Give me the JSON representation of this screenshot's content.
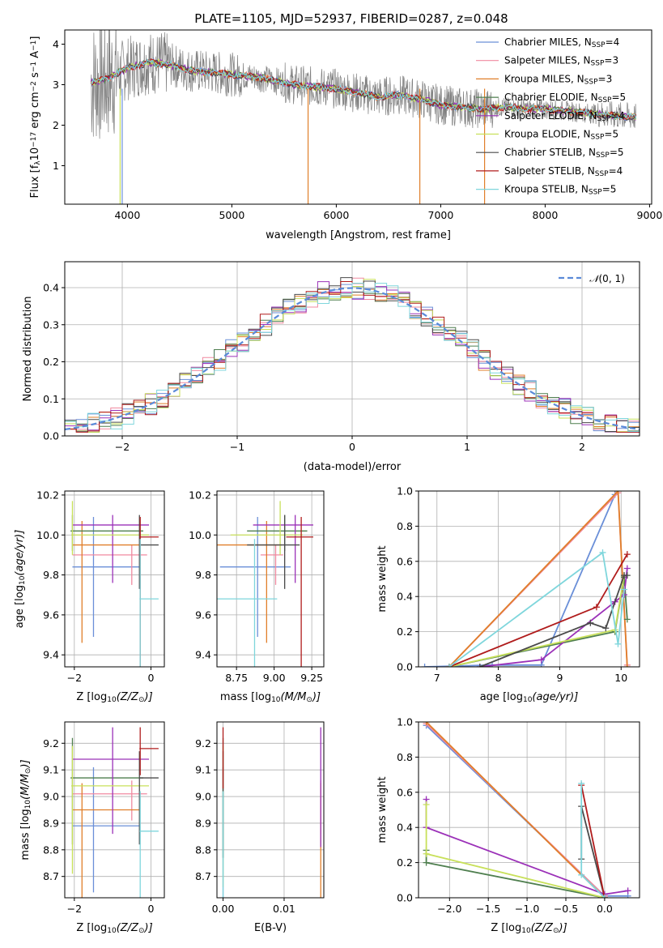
{
  "figure": {
    "title": "PLATE=1105, MJD=52937, FIBERID=0287, z=0.048"
  },
  "series": [
    {
      "name": "Chabrier MILES, N$_{SSP}$=4",
      "legend": [
        "Chabrier MILES, N",
        "SSP",
        "=4"
      ],
      "color": "#6a8fd8",
      "age": 9.84,
      "age_err": 0.25,
      "age_err_up": 0.25,
      "Z": -1.5,
      "Z_lo": -2.05,
      "Z_hi": -0.28,
      "mass": 8.89,
      "mass_err_lo": 0.2,
      "mass_err_hi": 0.22,
      "ebv": 0.0
    },
    {
      "name": "Salpeter MILES, N$_{SSP}$=3",
      "legend": [
        "Salpeter MILES, N",
        "SSP",
        "=3"
      ],
      "color": "#f08aa0",
      "age": 9.9,
      "age_err": 0.05,
      "age_err_up": 0.05,
      "Z": -0.5,
      "Z_lo": -2.05,
      "Z_hi": -0.1,
      "mass": 9.01,
      "mass_err_lo": 0.05,
      "mass_err_hi": 0.05,
      "ebv": 0.016
    },
    {
      "name": "Kroupa MILES, N$_{SSP}$=3",
      "legend": [
        "Kroupa MILES, N",
        "SSP",
        "=3"
      ],
      "color": "#e07f2a",
      "age": 9.95,
      "age_err": 0.39,
      "age_err_up": 0.12,
      "Z": -1.8,
      "Z_lo": -2.05,
      "Z_hi": -0.3,
      "mass": 8.95,
      "mass_err_lo": 0.3,
      "mass_err_hi": 0.1,
      "ebv": 0.016
    },
    {
      "name": "Chabrier ELODIE, N$_{SSP}$=5",
      "legend": [
        "Chabrier ELODIE, N",
        "SSP",
        "=5"
      ],
      "color": "#4f7f4f",
      "age": 10.02,
      "age_err": 0.0,
      "age_err_up": 0.08,
      "Z": -2.05,
      "Z_lo": -2.1,
      "Z_hi": -0.2,
      "mass": 9.07,
      "mass_err_lo": 0.2,
      "mass_err_hi": 0.15,
      "ebv": 0.0
    },
    {
      "name": "Salpeter ELODIE, N$_{SSP}$=4",
      "legend": [
        "Salpeter ELODIE, N",
        "SSP",
        "=4"
      ],
      "color": "#9b30b8",
      "age": 10.05,
      "age_err": 0.19,
      "age_err_up": 0.05,
      "Z": -1.0,
      "Z_lo": -2.05,
      "Z_hi": -0.05,
      "mass": 9.14,
      "mass_err_lo": 0.23,
      "mass_err_hi": 0.12,
      "ebv": 0.016
    },
    {
      "name": "Kroupa ELODIE, N$_{SSP}$=5",
      "legend": [
        "Kroupa ELODIE, N",
        "SSP",
        "=5"
      ],
      "color": "#c8e05a",
      "age": 10.0,
      "age_err": 0.0,
      "age_err_up": 0.17,
      "Z": -2.05,
      "Z_lo": -2.08,
      "Z_hi": -0.05,
      "mass": 9.04,
      "mass_err_lo": 0.28,
      "mass_err_hi": 0.15,
      "ebv": 0.0
    },
    {
      "name": "Chabrier STELIB, N$_{SSP}$=5",
      "legend": [
        "Chabrier STELIB, N",
        "SSP",
        "=5"
      ],
      "color": "#4a4a4a",
      "age": 9.95,
      "age_err": 0.12,
      "age_err_up": 0.15,
      "Z": -0.3,
      "Z_lo": -0.3,
      "Z_hi": 0.2,
      "mass": 9.07,
      "mass_err_lo": 0.2,
      "mass_err_hi": 0.1,
      "ebv": 0.0
    },
    {
      "name": "Salpeter STELIB, N$_{SSP}$=4",
      "legend": [
        "Salpeter STELIB, N",
        "SSP",
        "=4"
      ],
      "color": "#b01c1c",
      "age": 9.99,
      "age_err": 0.55,
      "age_err_up": 0.1,
      "Z": -0.28,
      "Z_lo": -0.3,
      "Z_hi": 0.2,
      "mass": 9.18,
      "mass_err_lo": 0.05,
      "mass_err_hi": 0.08,
      "ebv": 0.0
    },
    {
      "name": "Kroupa STELIB, N$_{SSP}$=5",
      "legend": [
        "Kroupa STELIB, N",
        "SSP",
        "=5"
      ],
      "color": "#7fd6dc",
      "age": 9.68,
      "age_err": 0.3,
      "age_err_up": 0.3,
      "Z": -0.28,
      "Z_lo": -0.3,
      "Z_hi": 0.2,
      "mass": 8.87,
      "mass_err_lo": 0.2,
      "mass_err_hi": 0.15,
      "ebv": 0.0
    }
  ],
  "chart_data": [
    {
      "type": "line",
      "panel": "spectrum",
      "title": "PLATE=1105, MJD=52937, FIBERID=0287, z=0.048",
      "xlabel": "wavelength [Angstrom, rest frame]",
      "ylabel_parts": [
        "Flux [f",
        "λ",
        "10",
        "−17",
        " erg cm",
        "−2",
        " s",
        "−1",
        " A",
        "−1",
        "]"
      ],
      "xlim": [
        3400,
        9020
      ],
      "ylim": [
        0.05,
        4.35
      ],
      "xticks": [
        4000,
        5000,
        6000,
        7000,
        8000,
        9000
      ],
      "yticks": [
        1,
        2,
        3,
        4
      ],
      "data_color": "#808080",
      "data_x_range": [
        3650,
        8870
      ],
      "continuum_points": [
        [
          3650,
          3.05
        ],
        [
          3800,
          3.15
        ],
        [
          4000,
          3.4
        ],
        [
          4200,
          3.55
        ],
        [
          4400,
          3.5
        ],
        [
          4600,
          3.35
        ],
        [
          4800,
          3.3
        ],
        [
          5000,
          3.25
        ],
        [
          5200,
          3.2
        ],
        [
          5400,
          3.1
        ],
        [
          5600,
          3.0
        ],
        [
          5800,
          2.95
        ],
        [
          6000,
          2.9
        ],
        [
          6200,
          2.8
        ],
        [
          6400,
          2.7
        ],
        [
          6600,
          2.75
        ],
        [
          6800,
          2.65
        ],
        [
          7000,
          2.5
        ],
        [
          7200,
          2.45
        ],
        [
          7400,
          2.4
        ],
        [
          7600,
          2.45
        ],
        [
          7800,
          2.4
        ],
        [
          8000,
          2.4
        ],
        [
          8200,
          2.35
        ],
        [
          8400,
          2.3
        ],
        [
          8600,
          2.25
        ],
        [
          8870,
          2.2
        ]
      ],
      "model_x_range": [
        3650,
        8870
      ],
      "model_cut_x": 7420
    },
    {
      "type": "line",
      "panel": "residual_distribution",
      "xlabel": "(data-model)/error",
      "ylabel": "Normed distribution",
      "xlim": [
        -2.5,
        2.5
      ],
      "ylim": [
        0.0,
        0.47
      ],
      "xticks": [
        -2,
        -1,
        0,
        1,
        2
      ],
      "yticks": [
        0.0,
        0.1,
        0.2,
        0.3,
        0.4
      ],
      "reference_curve": {
        "label": "$\\mathcal{N}(0,1)$",
        "label_parts": [
          "𝒩",
          "(0, 1)"
        ],
        "color": "#5a8ad8",
        "mu": 0,
        "sigma": 1
      },
      "bins": 50
    },
    {
      "type": "scatter",
      "panel": "age_vs_Z",
      "xlabel_parts": [
        "Z [log",
        "10",
        "(Z/Z",
        "⊙",
        ")]"
      ],
      "ylabel_parts": [
        "age  [log",
        "10",
        "(age/yr)]"
      ],
      "xlim": [
        -2.25,
        0.35
      ],
      "ylim": [
        9.34,
        10.22
      ],
      "xticks": [
        -2,
        0
      ],
      "yticks": [
        9.4,
        9.6,
        9.8,
        10.0,
        10.2
      ]
    },
    {
      "type": "scatter",
      "panel": "age_vs_mass",
      "xlabel_parts": [
        "mass [log",
        "10",
        "(M/M",
        "⊙",
        ")]"
      ],
      "xlim": [
        8.62,
        9.33
      ],
      "ylim": [
        9.34,
        10.22
      ],
      "xticks": [
        8.75,
        9.0,
        9.25
      ],
      "xticklabels": [
        "8.75",
        "9.00",
        "9.25"
      ],
      "yticks": [
        9.4,
        9.6,
        9.8,
        10.0,
        10.2
      ]
    },
    {
      "type": "line",
      "panel": "mass_weight_vs_age",
      "xlabel_parts": [
        "age  [log",
        "10",
        "(age/yr)]"
      ],
      "ylabel": "mass weight",
      "xlim": [
        6.7,
        10.3
      ],
      "ylim": [
        0.0,
        1.0
      ],
      "xticks": [
        7,
        8,
        9,
        10
      ],
      "yticks": [
        0.0,
        0.2,
        0.4,
        0.6,
        0.8,
        1.0
      ],
      "lines": [
        {
          "series": 0,
          "points": [
            [
              6.8,
              0.0
            ],
            [
              7.9,
              0.01
            ],
            [
              8.7,
              0.01
            ],
            [
              9.9,
              0.98
            ]
          ]
        },
        {
          "series": 1,
          "points": [
            [
              7.2,
              0.0
            ],
            [
              9.95,
              0.99
            ],
            [
              10.1,
              0.01
            ]
          ]
        },
        {
          "series": 2,
          "points": [
            [
              7.2,
              0.0
            ],
            [
              9.95,
              1.0
            ],
            [
              10.1,
              0.0
            ]
          ]
        },
        {
          "series": 3,
          "points": [
            [
              7.2,
              0.0
            ],
            [
              9.9,
              0.2
            ],
            [
              10.05,
              0.51
            ],
            [
              10.1,
              0.27
            ]
          ]
        },
        {
          "series": 4,
          "points": [
            [
              7.7,
              0.0
            ],
            [
              8.7,
              0.04
            ],
            [
              9.9,
              0.37
            ],
            [
              10.05,
              0.41
            ],
            [
              10.1,
              0.56
            ]
          ]
        },
        {
          "series": 5,
          "points": [
            [
              7.2,
              0.0
            ],
            [
              9.9,
              0.21
            ],
            [
              10.05,
              0.52
            ]
          ]
        },
        {
          "series": 6,
          "points": [
            [
              7.7,
              0.0
            ],
            [
              9.5,
              0.25
            ],
            [
              9.75,
              0.22
            ],
            [
              10.05,
              0.52
            ],
            [
              10.1,
              0.52
            ]
          ]
        },
        {
          "series": 7,
          "points": [
            [
              7.2,
              0.0
            ],
            [
              9.6,
              0.34
            ],
            [
              10.1,
              0.64
            ]
          ]
        },
        {
          "series": 8,
          "points": [
            [
              7.2,
              0.0
            ],
            [
              9.7,
              0.65
            ],
            [
              9.95,
              0.13
            ],
            [
              10.05,
              0.44
            ]
          ]
        }
      ]
    },
    {
      "type": "scatter",
      "panel": "mass_vs_Z",
      "xlabel_parts": [
        "Z [log",
        "10",
        "(Z/Z",
        "⊙",
        ")]"
      ],
      "ylabel_parts": [
        "mass [log",
        "10",
        "(M/M",
        "⊙",
        ")]"
      ],
      "xlim": [
        -2.25,
        0.35
      ],
      "ylim": [
        8.62,
        9.28
      ],
      "xticks": [
        -2,
        0
      ],
      "yticks": [
        8.7,
        8.8,
        8.9,
        9.0,
        9.1,
        9.2
      ]
    },
    {
      "type": "scatter",
      "panel": "mass_vs_ebv",
      "xlabel": "E(B-V)",
      "xlim": [
        -0.001,
        0.0165
      ],
      "ylim": [
        8.62,
        9.28
      ],
      "xticks": [
        0.0,
        0.01
      ],
      "xticklabels": [
        "0.00",
        "0.01"
      ],
      "yticks": [
        8.7,
        8.8,
        8.9,
        9.0,
        9.1,
        9.2
      ]
    },
    {
      "type": "line",
      "panel": "mass_weight_vs_Z",
      "xlabel_parts": [
        "Z [log",
        "10",
        "(Z/Z",
        "⊙",
        ")]"
      ],
      "ylabel": "mass weight",
      "xlim": [
        -2.4,
        0.45
      ],
      "ylim": [
        0.0,
        1.0
      ],
      "xticks": [
        -2.0,
        -1.5,
        -1.0,
        -0.5,
        0.0
      ],
      "xticklabels": [
        "−2.0",
        "−1.5",
        "−1.0",
        "−0.5",
        "0.0"
      ],
      "yticks": [
        0.0,
        0.2,
        0.4,
        0.6,
        0.8,
        1.0
      ],
      "lines": [
        {
          "series": 0,
          "points": [
            [
              -2.3,
              0.98
            ],
            [
              0.0,
              0.01
            ],
            [
              0.3,
              0.01
            ]
          ]
        },
        {
          "series": 1,
          "points": [
            [
              -2.3,
              0.99
            ],
            [
              0.0,
              0.01
            ]
          ]
        },
        {
          "series": 2,
          "points": [
            [
              -2.3,
              1.0
            ],
            [
              0.0,
              0.0
            ]
          ]
        },
        {
          "series": 3,
          "points": [
            [
              -2.3,
              0.27
            ],
            [
              -2.3,
              0.2
            ],
            [
              0.0,
              0.0
            ]
          ]
        },
        {
          "series": 4,
          "points": [
            [
              -2.3,
              0.56
            ],
            [
              -2.3,
              0.4
            ],
            [
              0.0,
              0.02
            ],
            [
              0.3,
              0.04
            ]
          ]
        },
        {
          "series": 5,
          "points": [
            [
              -2.3,
              0.53
            ],
            [
              -2.3,
              0.25
            ],
            [
              0.0,
              0.0
            ]
          ]
        },
        {
          "series": 6,
          "points": [
            [
              -0.3,
              0.22
            ],
            [
              -0.3,
              0.52
            ],
            [
              0.0,
              0.0
            ]
          ]
        },
        {
          "series": 7,
          "points": [
            [
              -0.3,
              0.64
            ],
            [
              0.0,
              0.0
            ]
          ]
        },
        {
          "series": 8,
          "points": [
            [
              -0.3,
              0.65
            ],
            [
              -0.3,
              0.13
            ],
            [
              0.0,
              0.0
            ]
          ]
        }
      ]
    }
  ]
}
